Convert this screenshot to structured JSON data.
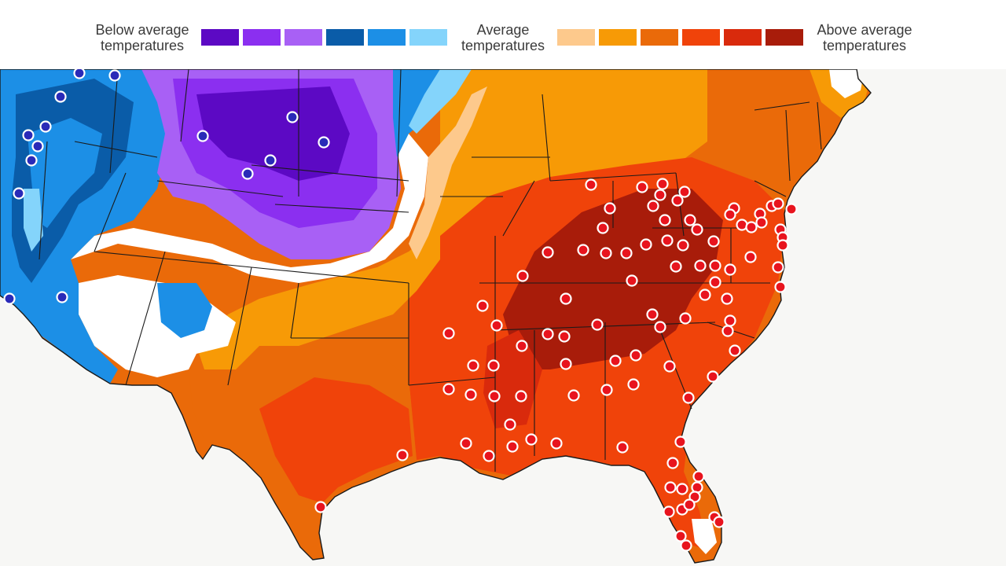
{
  "legend": {
    "below_line1": "Below average",
    "below_line2": "temperatures",
    "average_line1": "Average",
    "average_line2": "temperatures",
    "above_line1": "Above average",
    "above_line2": "temperatures",
    "below_colors": [
      "#5c09c4",
      "#8b2ff0",
      "#a860f5",
      "#0a5ca8",
      "#1c8fe6",
      "#84d4fb"
    ],
    "above_colors": [
      "#fdc98c",
      "#f79a06",
      "#ea6a09",
      "#f0430a",
      "#d92a0c",
      "#a81c0a"
    ]
  },
  "map": {
    "fill_colors": {
      "land_average": "#ffffff",
      "cold_light": "#84d4fb",
      "cold_mid": "#1c8fe6",
      "cold_dark": "#0a5ca8",
      "purple_light": "#a860f5",
      "purple_mid": "#8b2ff0",
      "purple_dark": "#5c09c4",
      "warm_light": "#fdc98c",
      "warm_orange": "#f79a06",
      "warm_dark_orange": "#ea6a09",
      "hot_red_orange": "#f0430a",
      "hot_red": "#d92a0c",
      "hot_dark_red": "#a81c0a",
      "border": "#1a1a1a",
      "cold_marker": "#2a2ab8",
      "warm_marker": "#e8141e"
    }
  }
}
